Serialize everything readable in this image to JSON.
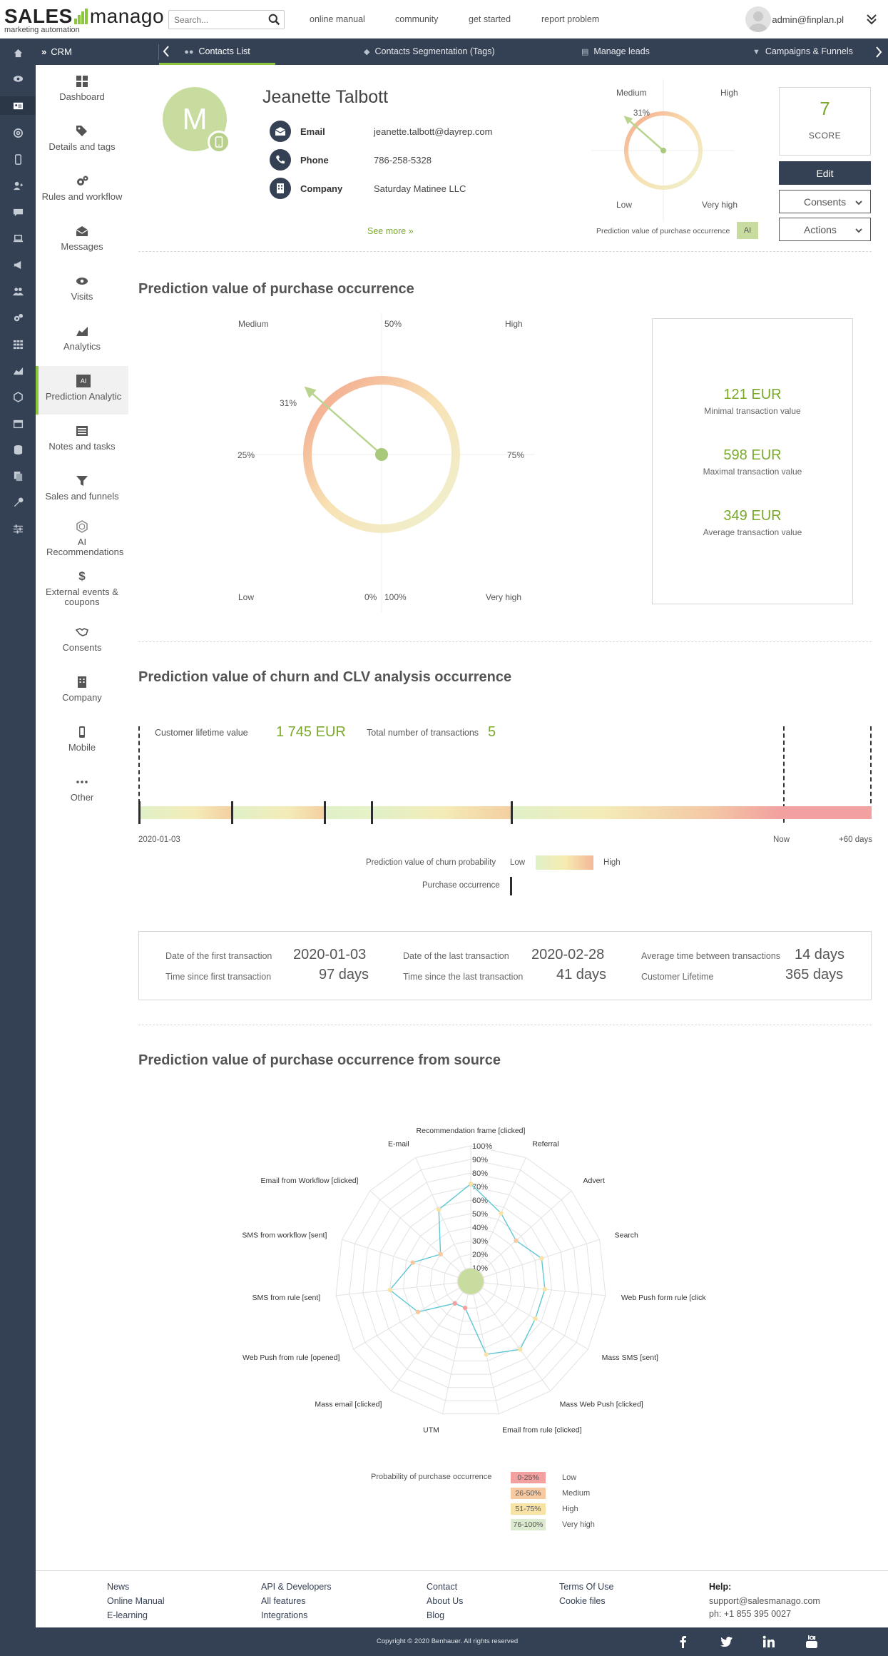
{
  "app": {
    "logo_sales": "SALES",
    "logo_manago": "manago",
    "logo_sub": "marketing automation",
    "search_placeholder": "Search...",
    "top_links": [
      "online manual",
      "community",
      "get started",
      "report problem"
    ],
    "user_email": "admin@finplan.pl"
  },
  "navbar": {
    "section": "CRM",
    "tabs": [
      {
        "label": "Contacts List",
        "icon": "users-icon",
        "active": true
      },
      {
        "label": "Contacts Segmentation (Tags)",
        "icon": "tag-icon"
      },
      {
        "label": "Manage leads",
        "icon": "leads-icon"
      },
      {
        "label": "Campaigns & Funnels",
        "icon": "filter-icon"
      }
    ]
  },
  "sidebar": {
    "items": [
      {
        "label": "Dashboard",
        "icon": "grid-icon"
      },
      {
        "label": "Details and tags",
        "icon": "tags-icon"
      },
      {
        "label": "Rules and workflow",
        "icon": "gears-icon"
      },
      {
        "label": "Messages",
        "icon": "envelope-icon"
      },
      {
        "label": "Visits",
        "icon": "eye-icon"
      },
      {
        "label": "Analytics",
        "icon": "area-chart-icon"
      },
      {
        "label": "Prediction Analytic",
        "icon": "ai-icon",
        "badge": "AI",
        "active": true
      },
      {
        "label": "Notes and tasks",
        "icon": "notes-icon"
      },
      {
        "label": "Sales and funnels",
        "icon": "funnel-icon"
      },
      {
        "label": "AI Recommendations",
        "icon": "hexagon-icon"
      },
      {
        "label": "External events & coupons",
        "icon": "dollar-icon"
      },
      {
        "label": "Consents",
        "icon": "handshake-icon"
      },
      {
        "label": "Company",
        "icon": "building-icon"
      },
      {
        "label": "Mobile",
        "icon": "mobile-icon"
      },
      {
        "label": "Other",
        "icon": "ellipsis-icon"
      }
    ]
  },
  "contact": {
    "initial": "M",
    "name": "Jeanette Talbott",
    "rows": [
      {
        "label": "Email",
        "value": "jeanette.talbott@dayrep.com"
      },
      {
        "label": "Phone",
        "value": "786-258-5328"
      },
      {
        "label": "Company",
        "value": "Saturday Matinee LLC"
      }
    ],
    "see_more": "See more »",
    "score": "7",
    "score_label": "SCORE",
    "edit": "Edit",
    "consents": "Consents",
    "actions": "Actions"
  },
  "mini_gauge": {
    "medium": "Medium",
    "high": "High",
    "low": "Low",
    "very_high": "Very high",
    "percent": "31%",
    "caption": "Prediction value of purchase occurrence",
    "badge": "AI"
  },
  "purchase": {
    "title": "Prediction value of purchase occurrence",
    "medium": "Medium",
    "high": "High",
    "low": "Low",
    "very_high": "Very high",
    "p50": "50%",
    "p25": "25%",
    "p75": "75%",
    "p0": "0%",
    "p100": "100%",
    "percent": "31%",
    "value": 0.31,
    "min_val": "121 EUR",
    "min_lbl": "Minimal transaction value",
    "max_val": "598 EUR",
    "max_lbl": "Maximal transaction value",
    "avg_val": "349 EUR",
    "avg_lbl": "Average transaction value"
  },
  "churn": {
    "title": "Prediction value of churn and CLV analysis occurrence",
    "clv_label": "Customer lifetime value",
    "clv_value": "1 745 EUR",
    "tx_label": "Total number of transactions",
    "tx_value": "5",
    "start_date": "2020-01-03",
    "now": "Now",
    "plus60": "+60 days",
    "legend_churn": "Prediction value of churn probability",
    "legend_low": "Low",
    "legend_high": "High",
    "legend_purchase": "Purchase occurrence"
  },
  "transactions": {
    "first_date_lbl": "Date of the first transaction",
    "first_date": "2020-01-03",
    "since_first_lbl": "Time since first transaction",
    "since_first": "97 days",
    "last_date_lbl": "Date of the last transaction",
    "last_date": "2020-02-28",
    "since_last_lbl": "Time since the last transaction",
    "since_last": "41 days",
    "avg_lbl": "Average time between transactions",
    "avg": "14 days",
    "lifetime_lbl": "Customer Lifetime",
    "lifetime": "365 days"
  },
  "source": {
    "title": "Prediction value of purchase occurrence from source",
    "rings": [
      "10%",
      "20%",
      "30%",
      "40%",
      "50%",
      "60%",
      "70%",
      "80%",
      "90%",
      "100%"
    ],
    "categories": [
      "Recommendation frame [clicked]",
      "Referral",
      "Advert",
      "Search",
      "Web Push form rule [clicked]",
      "Mass SMS [sent]",
      "Mass Web Push [clicked]",
      "Email from rule [clicked]",
      "UTM",
      "Mass email [clicked]",
      "Web Push from rule [opened]",
      "SMS from rule [sent]",
      "SMS from workflow [sent]",
      "Email from Workflow [clicked]",
      "E-mail"
    ],
    "values": [
      0.72,
      0.55,
      0.45,
      0.55,
      0.55,
      0.55,
      0.62,
      0.55,
      0.2,
      0.2,
      0.45,
      0.6,
      0.45,
      0.3,
      0.58
    ],
    "prob_label": "Probability of purchase occurrence",
    "prob_levels": [
      {
        "range": "0-25%",
        "label": "Low",
        "color": "#f2a0a0"
      },
      {
        "range": "26-50%",
        "label": "Medium",
        "color": "#f6c9a0"
      },
      {
        "range": "51-75%",
        "label": "High",
        "color": "#f8e3a6"
      },
      {
        "range": "76-100%",
        "label": "Very high",
        "color": "#dcebd0"
      }
    ]
  },
  "footer": {
    "col1": [
      "News",
      "Online Manual",
      "E-learning"
    ],
    "col2": [
      "API & Developers",
      "All features",
      "Integrations"
    ],
    "col3": [
      "Contact",
      "About Us",
      "Blog"
    ],
    "col4": [
      "Terms Of Use",
      "Cookie files"
    ],
    "help_title": "Help:",
    "help_email": "support@salesmanago.com",
    "help_phone": "ph: +1 855 395 0027",
    "copyright": "Copyright © 2020 Benhauer. All rights reserved"
  },
  "colors": {
    "accent": "#8cc63f",
    "dark": "#344154",
    "value_green": "#7aa92c"
  }
}
